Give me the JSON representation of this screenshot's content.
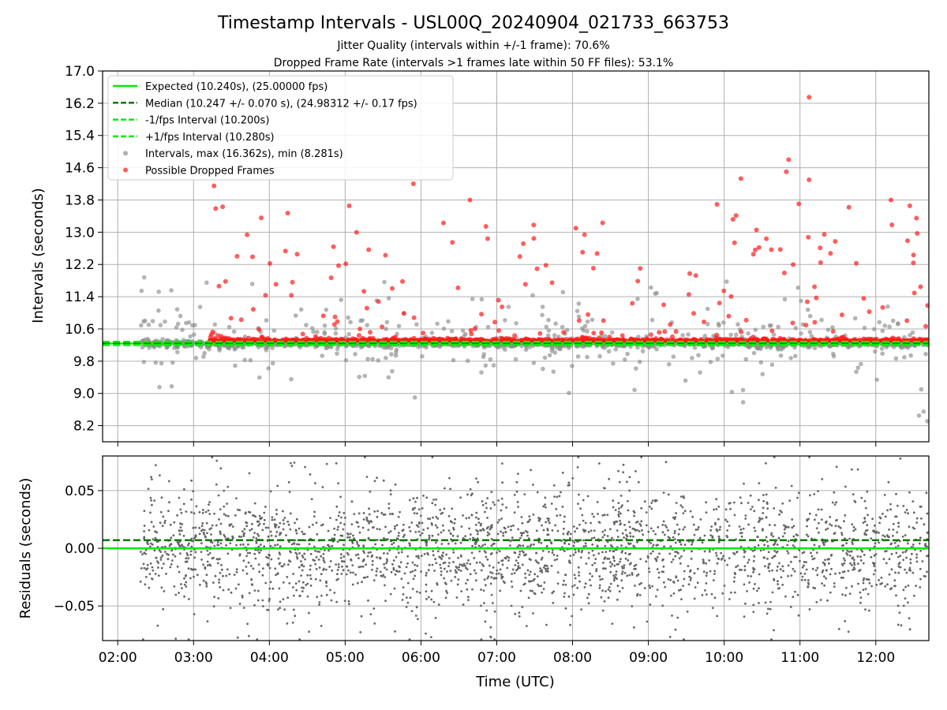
{
  "header": {
    "title": "Timestamp Intervals - USL00Q_20240904_021733_663753",
    "subtitle_1": "Jitter Quality (intervals within +/-1 frame): 70.6%",
    "subtitle_2": "Dropped Frame Rate (intervals >1 frames late within 50 FF files): 53.1%"
  },
  "colors": {
    "expected": "#00ee00",
    "median": "#007a00",
    "interval_band": "#00ee00",
    "intervals": "#8c8c8c",
    "dropped": "#ff1a1a",
    "residuals": "#666666"
  },
  "chart_data": [
    {
      "type": "scatter",
      "panel": "top",
      "ylabel": "Intervals (seconds)",
      "xlabel": "",
      "ylim": [
        7.8,
        17.0
      ],
      "xlim": [
        "01:48",
        "12:42"
      ],
      "y_ticks": [
        "8.2",
        "9.0",
        "9.8",
        "10.6",
        "11.4",
        "12.2",
        "13.0",
        "13.8",
        "14.6",
        "15.4",
        "16.2",
        "17.0"
      ],
      "x_ticks": [
        "02:00",
        "03:00",
        "04:00",
        "05:00",
        "06:00",
        "07:00",
        "08:00",
        "09:00",
        "10:00",
        "11:00",
        "12:00"
      ],
      "grid": true,
      "legend_position": "top-left",
      "lines": [
        {
          "name": "Expected (10.240s), (25.00000 fps)",
          "y": 10.24,
          "style": "solid",
          "color": "#00ee00"
        },
        {
          "name": "Median (10.247 +/- 0.070 s), (24.98312 +/- 0.17 fps)",
          "y": 10.247,
          "style": "dashed",
          "color": "#007a00"
        },
        {
          "name": "-1/fps Interval (10.200s)",
          "y": 10.2,
          "style": "dashed",
          "color": "#00ee00"
        },
        {
          "name": "+1/fps Interval (10.280s)",
          "y": 10.28,
          "style": "dashed",
          "color": "#00ee00"
        }
      ],
      "series": [
        {
          "name": "Intervals, max (16.362s), min (8.281s)",
          "marker": "circle",
          "color": "#8c8c8c",
          "x_range": [
            "02:18",
            "12:42"
          ],
          "max": 16.362,
          "min": 8.281,
          "typical": 10.24
        },
        {
          "name": "Possible Dropped Frames",
          "marker": "circle",
          "color": "#ff1a1a",
          "x_range": [
            "03:12",
            "12:42"
          ]
        }
      ]
    },
    {
      "type": "scatter",
      "panel": "bottom",
      "ylabel": "Residuals (seconds)",
      "xlabel": "Time (UTC)",
      "ylim": [
        -0.08,
        0.08
      ],
      "xlim": [
        "01:48",
        "12:42"
      ],
      "y_ticks": [
        "−0.05",
        "0.00",
        "0.05"
      ],
      "x_ticks": [
        "02:00",
        "03:00",
        "04:00",
        "05:00",
        "06:00",
        "07:00",
        "08:00",
        "09:00",
        "10:00",
        "11:00",
        "12:00"
      ],
      "grid": true,
      "lines": [
        {
          "y": 0.0,
          "style": "solid",
          "color": "#00ee00"
        },
        {
          "y": 0.007,
          "style": "dashed",
          "color": "#007a00"
        }
      ],
      "series": [
        {
          "name": "Residuals",
          "marker": "dot",
          "color": "#666666",
          "x_range": [
            "02:18",
            "12:42"
          ],
          "spread": 0.045
        }
      ]
    }
  ]
}
